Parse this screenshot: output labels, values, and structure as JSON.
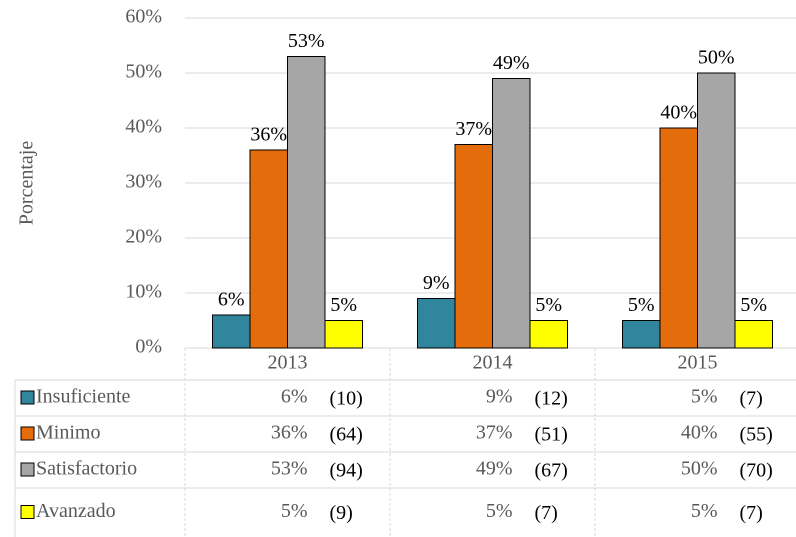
{
  "chart_data": {
    "type": "bar",
    "y_label": "Porcentaje",
    "categories": [
      "2013",
      "2014",
      "2015"
    ],
    "ylim": [
      0,
      60
    ],
    "yticks": [
      {
        "value": 0,
        "label": "0%"
      },
      {
        "value": 10,
        "label": "10%"
      },
      {
        "value": 20,
        "label": "20%"
      },
      {
        "value": 30,
        "label": "30%"
      },
      {
        "value": 40,
        "label": "40%"
      },
      {
        "value": 50,
        "label": "50%"
      },
      {
        "value": 60,
        "label": "60%"
      }
    ],
    "grid": true,
    "series": [
      {
        "name": "Insuficiente",
        "color": "#31859c",
        "values": [
          6,
          9,
          5
        ],
        "value_labels": [
          "6%",
          "9%",
          "5%"
        ],
        "count_labels": [
          "(10)",
          "(12)",
          "(7)"
        ]
      },
      {
        "name": "Minimo",
        "color": "#e46c0a",
        "values": [
          36,
          37,
          40
        ],
        "value_labels": [
          "36%",
          "37%",
          "40%"
        ],
        "count_labels": [
          "(64)",
          "(51)",
          "(55)"
        ]
      },
      {
        "name": "Satisfactorio",
        "color": "#a6a6a6",
        "values": [
          53,
          49,
          50
        ],
        "value_labels": [
          "53%",
          "49%",
          "50%"
        ],
        "count_labels": [
          "(94)",
          "(67)",
          "(70)"
        ]
      },
      {
        "name": "Avanzado",
        "color": "#ffff00",
        "values": [
          5,
          5,
          5
        ],
        "value_labels": [
          "5%",
          "5%",
          "5%"
        ],
        "count_labels": [
          "(9)",
          "(7)",
          "(7)"
        ]
      }
    ]
  }
}
